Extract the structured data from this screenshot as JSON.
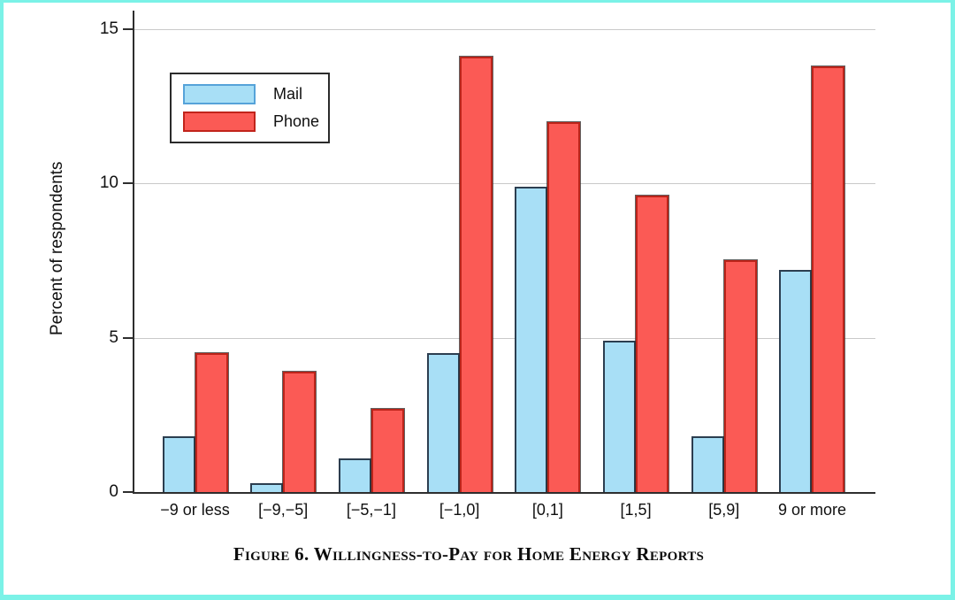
{
  "figure": {
    "caption": "Figure 6. Willingness-to-Pay for Home Energy Reports",
    "frame_color": "#7bf2e7"
  },
  "chart_data": {
    "type": "bar",
    "title": "",
    "xlabel": "",
    "ylabel": "Percent of respondents",
    "categories": [
      "−9 or less",
      "[−9,−5]",
      "[−5,−1]",
      "[−1,0]",
      "[0,1]",
      "[1,5]",
      "[5,9]",
      "9 or more"
    ],
    "series": [
      {
        "name": "Mail",
        "fill": "#a8dff6",
        "edge": "#2c3e50",
        "values": [
          1.8,
          0.3,
          1.1,
          4.5,
          9.9,
          4.9,
          1.8,
          7.2
        ]
      },
      {
        "name": "Phone",
        "fill": "#fb5a55",
        "edge": "#bc241a",
        "values": [
          4.5,
          3.9,
          2.7,
          14.1,
          12.0,
          9.6,
          7.5,
          13.8
        ]
      }
    ],
    "ylim": [
      0,
      15
    ],
    "yticks": [
      0,
      5,
      10,
      15
    ],
    "grid": true,
    "grid_color": "#c9c9c9",
    "legend_position": "upper-left"
  }
}
